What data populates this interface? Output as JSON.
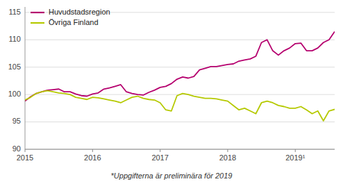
{
  "chart_data": {
    "type": "line",
    "categories": [
      "2015",
      null,
      null,
      null,
      null,
      null,
      null,
      null,
      null,
      null,
      null,
      null,
      "2016",
      null,
      null,
      null,
      null,
      null,
      null,
      null,
      null,
      null,
      null,
      null,
      "2017",
      null,
      null,
      null,
      null,
      null,
      null,
      null,
      null,
      null,
      null,
      null,
      "2018",
      null,
      null,
      null,
      null,
      null,
      null,
      null,
      null,
      null,
      null,
      null,
      "2019¹",
      null,
      null,
      null,
      null,
      null,
      null,
      null
    ],
    "series": [
      {
        "name": "Huvudstadsregion",
        "color": "#b5006e",
        "values": [
          98.8,
          99.6,
          100.2,
          100.5,
          100.8,
          100.9,
          101.0,
          100.5,
          100.5,
          100.1,
          99.8,
          99.7,
          100.1,
          100.3,
          101.0,
          101.2,
          101.5,
          101.8,
          100.5,
          100.2,
          100.0,
          99.9,
          100.4,
          100.8,
          101.3,
          101.5,
          102.0,
          102.8,
          103.2,
          103.0,
          103.3,
          104.5,
          104.8,
          105.1,
          105.1,
          105.3,
          105.5,
          105.6,
          106.1,
          106.3,
          106.5,
          107.0,
          109.5,
          110.0,
          108.0,
          107.2,
          108.0,
          108.5,
          109.3,
          109.4,
          108.0,
          108.0,
          108.5,
          109.5,
          110.0,
          111.5
        ]
      },
      {
        "name": "Övriga Finland",
        "color": "#b5c900",
        "values": [
          99.0,
          99.5,
          100.2,
          100.5,
          100.7,
          100.5,
          100.3,
          100.2,
          100.0,
          99.5,
          99.3,
          99.1,
          99.5,
          99.4,
          99.2,
          99.0,
          98.8,
          98.5,
          99.0,
          99.5,
          99.7,
          99.3,
          99.1,
          99.0,
          98.5,
          97.2,
          97.0,
          99.8,
          100.2,
          100.0,
          99.7,
          99.5,
          99.3,
          99.3,
          99.2,
          99.0,
          98.8,
          98.0,
          97.2,
          97.5,
          97.0,
          96.5,
          98.5,
          98.8,
          98.5,
          98.0,
          97.8,
          97.5,
          97.5,
          97.8,
          97.2,
          96.5,
          97.0,
          95.2,
          97.0,
          97.3
        ]
      }
    ],
    "ylim": [
      90,
      116
    ],
    "yticks": [
      90,
      95,
      100,
      105,
      110,
      115
    ],
    "grid": true,
    "legend": "upper left",
    "annotations": [
      "*Uppgifterna är preliminära för 2019"
    ]
  }
}
